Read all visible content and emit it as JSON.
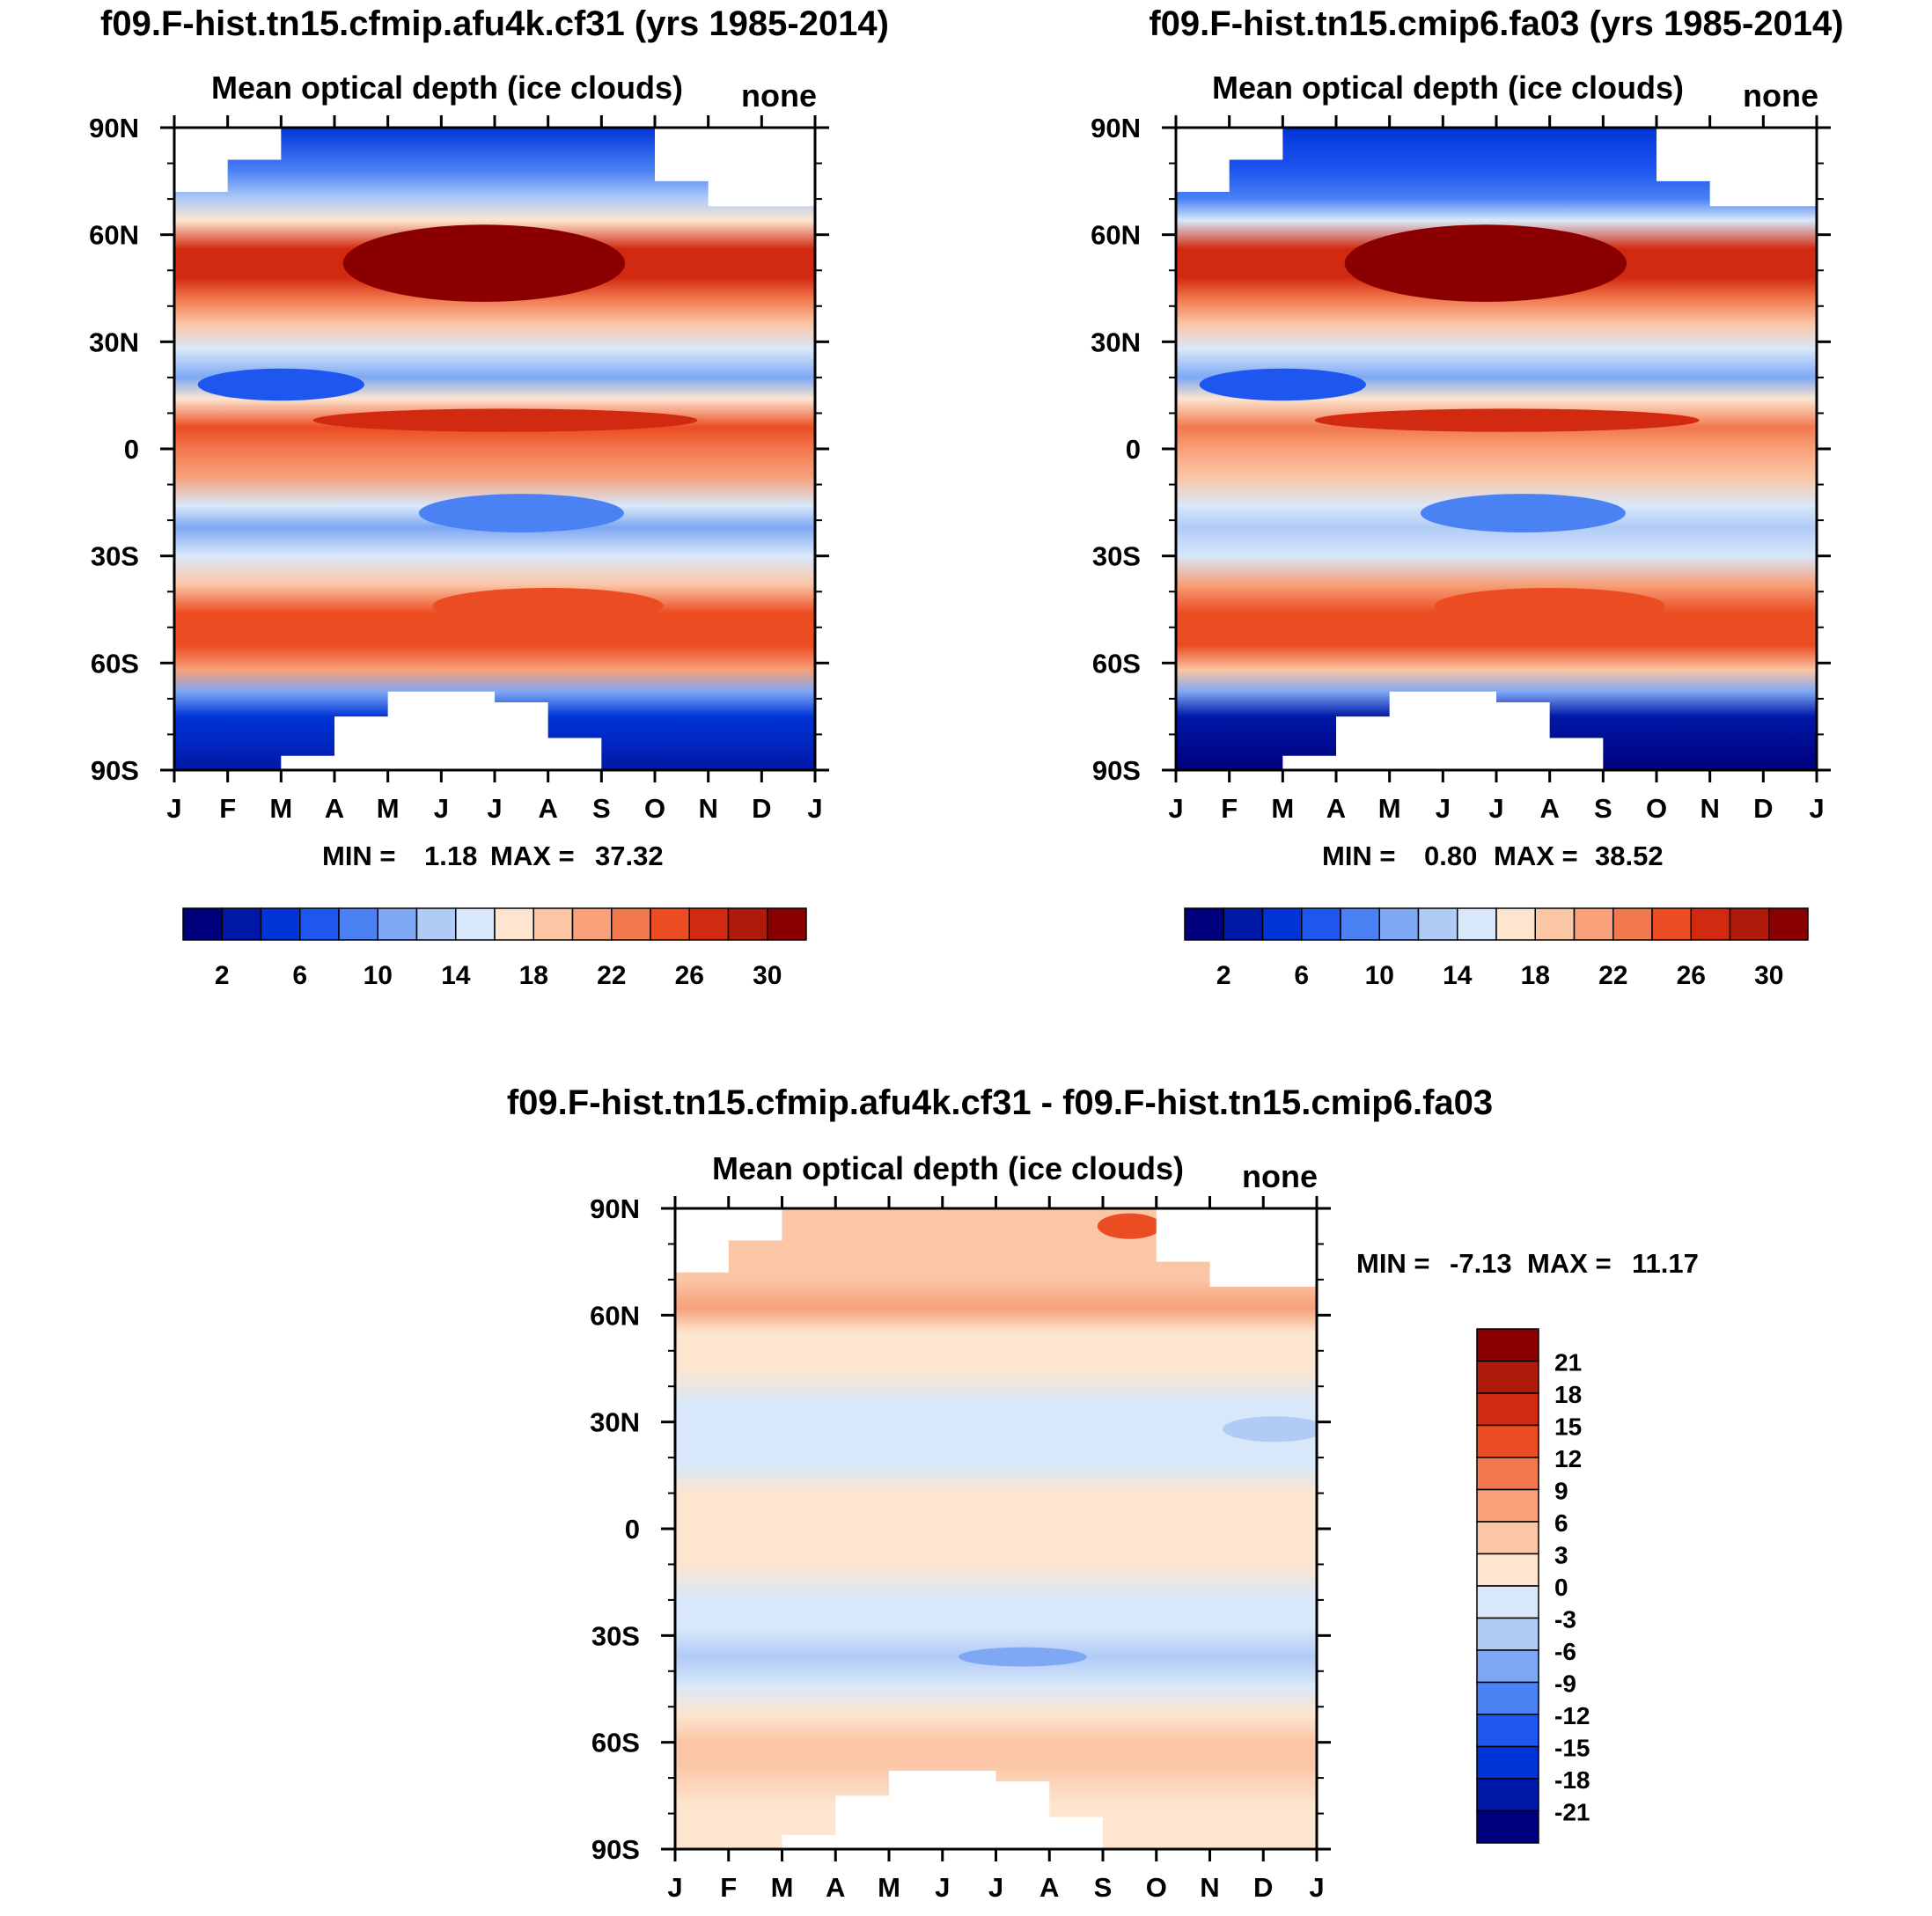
{
  "chart_data": [
    {
      "type": "heatmap",
      "title": "f09.F-hist.tn15.cfmip.afu4k.cf31 (yrs 1985-2014)",
      "subtitle": "Mean optical depth (ice clouds)",
      "units": "none",
      "x_tick_labels": [
        "J",
        "F",
        "M",
        "A",
        "M",
        "J",
        "J",
        "A",
        "S",
        "O",
        "N",
        "D",
        "J"
      ],
      "y_tick_labels": [
        "90N",
        "60N",
        "30N",
        "0",
        "30S",
        "60S",
        "90S"
      ],
      "stats": {
        "min_label": "MIN =",
        "min": "1.18",
        "max_label": "MAX =",
        "max": "37.32"
      },
      "colorbar": {
        "orientation": "horizontal",
        "labels": [
          "2",
          "6",
          "10",
          "14",
          "18",
          "22",
          "26",
          "30"
        ]
      },
      "lat_profile": [
        {
          "lat": 90,
          "v": 5
        },
        {
          "lat": 78,
          "v": 9
        },
        {
          "lat": 70,
          "v": 12
        },
        {
          "lat": 64,
          "v": 16
        },
        {
          "lat": 56,
          "v": 26
        },
        {
          "lat": 48,
          "v": 27
        },
        {
          "lat": 42,
          "v": 23
        },
        {
          "lat": 35,
          "v": 18
        },
        {
          "lat": 28,
          "v": 15
        },
        {
          "lat": 20,
          "v": 10
        },
        {
          "lat": 14,
          "v": 16
        },
        {
          "lat": 6,
          "v": 24
        },
        {
          "lat": 0,
          "v": 22
        },
        {
          "lat": -8,
          "v": 20
        },
        {
          "lat": -16,
          "v": 15
        },
        {
          "lat": -22,
          "v": 11
        },
        {
          "lat": -30,
          "v": 14
        },
        {
          "lat": -38,
          "v": 18
        },
        {
          "lat": -46,
          "v": 24
        },
        {
          "lat": -55,
          "v": 25
        },
        {
          "lat": -62,
          "v": 20
        },
        {
          "lat": -68,
          "v": 11
        },
        {
          "lat": -75,
          "v": 4
        },
        {
          "lat": -90,
          "v": 2
        }
      ]
    },
    {
      "type": "heatmap",
      "title": "f09.F-hist.tn15.cmip6.fa03 (yrs 1985-2014)",
      "subtitle": "Mean optical depth (ice clouds)",
      "units": "none",
      "x_tick_labels": [
        "J",
        "F",
        "M",
        "A",
        "M",
        "J",
        "J",
        "A",
        "S",
        "O",
        "N",
        "D",
        "J"
      ],
      "y_tick_labels": [
        "90N",
        "60N",
        "30N",
        "0",
        "30S",
        "60S",
        "90S"
      ],
      "stats": {
        "min_label": "MIN =",
        "min": "0.80",
        "max_label": "MAX =",
        "max": "38.52"
      },
      "colorbar": {
        "orientation": "horizontal",
        "labels": [
          "2",
          "6",
          "10",
          "14",
          "18",
          "22",
          "26",
          "30"
        ]
      },
      "lat_profile": [
        {
          "lat": 90,
          "v": 4
        },
        {
          "lat": 78,
          "v": 6
        },
        {
          "lat": 70,
          "v": 9
        },
        {
          "lat": 64,
          "v": 14
        },
        {
          "lat": 56,
          "v": 26
        },
        {
          "lat": 48,
          "v": 27
        },
        {
          "lat": 42,
          "v": 23
        },
        {
          "lat": 35,
          "v": 18
        },
        {
          "lat": 28,
          "v": 15
        },
        {
          "lat": 20,
          "v": 11
        },
        {
          "lat": 14,
          "v": 17
        },
        {
          "lat": 6,
          "v": 22
        },
        {
          "lat": 0,
          "v": 20
        },
        {
          "lat": -8,
          "v": 19
        },
        {
          "lat": -16,
          "v": 15
        },
        {
          "lat": -22,
          "v": 12
        },
        {
          "lat": -30,
          "v": 15
        },
        {
          "lat": -38,
          "v": 20
        },
        {
          "lat": -46,
          "v": 25
        },
        {
          "lat": -55,
          "v": 24
        },
        {
          "lat": -62,
          "v": 19
        },
        {
          "lat": -68,
          "v": 10
        },
        {
          "lat": -75,
          "v": 3
        },
        {
          "lat": -90,
          "v": 1
        }
      ]
    },
    {
      "type": "heatmap",
      "title": "f09.F-hist.tn15.cfmip.afu4k.cf31 - f09.F-hist.tn15.cmip6.fa03",
      "subtitle": "Mean optical depth (ice clouds)",
      "units": "none",
      "x_tick_labels": [
        "J",
        "F",
        "M",
        "A",
        "M",
        "J",
        "J",
        "A",
        "S",
        "O",
        "N",
        "D",
        "J"
      ],
      "y_tick_labels": [
        "90N",
        "60N",
        "30N",
        "0",
        "30S",
        "60S",
        "90S"
      ],
      "stats": {
        "min_label": "MIN =",
        "min": "-7.13",
        "max_label": "MAX =",
        "max": "11.17"
      },
      "colorbar": {
        "orientation": "vertical",
        "labels": [
          "21",
          "18",
          "15",
          "12",
          "9",
          "6",
          "3",
          "0",
          "-3",
          "-6",
          "-9",
          "-12",
          "-15",
          "-18",
          "-21"
        ]
      },
      "lat_profile": [
        {
          "lat": 90,
          "v": 3
        },
        {
          "lat": 78,
          "v": 4
        },
        {
          "lat": 70,
          "v": 5
        },
        {
          "lat": 62,
          "v": 6
        },
        {
          "lat": 55,
          "v": 1
        },
        {
          "lat": 45,
          "v": 1
        },
        {
          "lat": 35,
          "v": -1
        },
        {
          "lat": 28,
          "v": -2
        },
        {
          "lat": 18,
          "v": -1
        },
        {
          "lat": 10,
          "v": 1
        },
        {
          "lat": 0,
          "v": 2
        },
        {
          "lat": -10,
          "v": 1
        },
        {
          "lat": -20,
          "v": -1
        },
        {
          "lat": -28,
          "v": -2
        },
        {
          "lat": -36,
          "v": -4
        },
        {
          "lat": -44,
          "v": -3
        },
        {
          "lat": -52,
          "v": 1
        },
        {
          "lat": -60,
          "v": 4
        },
        {
          "lat": -66,
          "v": 3
        },
        {
          "lat": -78,
          "v": 2
        },
        {
          "lat": -90,
          "v": 2
        }
      ]
    }
  ],
  "palette": {
    "sequential": [
      "#00007c",
      "#0018a8",
      "#0034d8",
      "#1e56f0",
      "#4a82f4",
      "#7ea8f4",
      "#b0cbf6",
      "#d8e8fa",
      "#fde5cf",
      "#fbc6a6",
      "#f7a07a",
      "#f2784e",
      "#ec4c22",
      "#d22a10",
      "#b01a0a",
      "#8a0000"
    ],
    "diverging": [
      "#00007c",
      "#0018a8",
      "#0034d8",
      "#1e56f0",
      "#4a82f4",
      "#7ea8f4",
      "#b0cbf6",
      "#d8e8fa",
      "#fde5cf",
      "#fbc6a6",
      "#f7a07a",
      "#f2784e",
      "#ec4c22",
      "#d22a10",
      "#b01a0a",
      "#8a0000"
    ]
  }
}
